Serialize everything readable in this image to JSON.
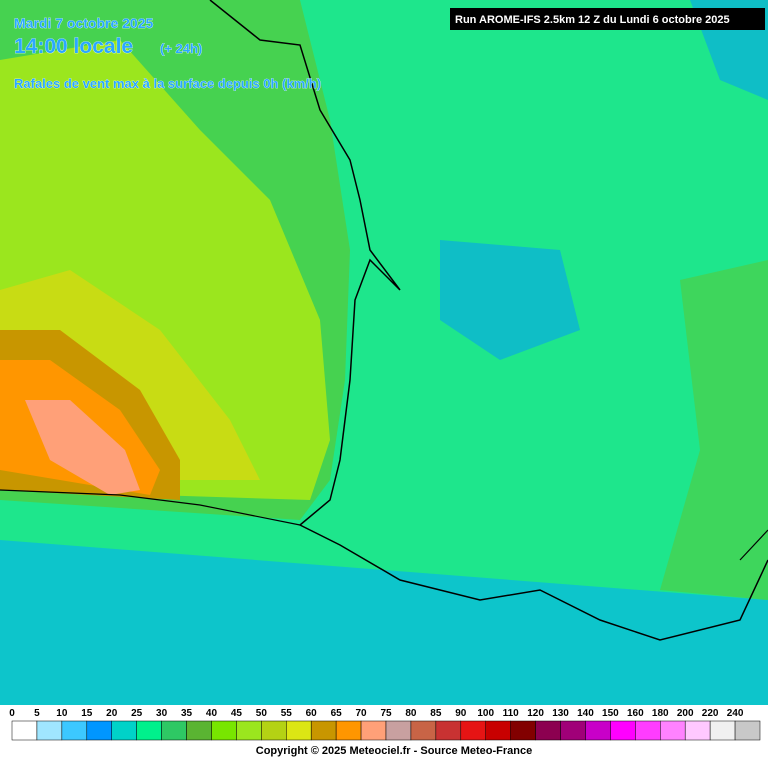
{
  "header": {
    "date": "Mardi 7 octobre 2025",
    "time": "14:00 locale",
    "offset": "(+ 24h)",
    "subtitle": "Rafales de vent max à la surface depuis 0h (km/h)",
    "run": "Run AROME-IFS 2.5km 12 Z du Lundi 6 octobre 2025"
  },
  "legend": {
    "values": [
      0,
      5,
      10,
      15,
      20,
      25,
      30,
      35,
      40,
      45,
      50,
      55,
      60,
      65,
      70,
      75,
      80,
      85,
      90,
      100,
      110,
      120,
      130,
      140,
      150,
      160,
      180,
      200,
      220,
      240
    ],
    "colors": [
      "#ffffff",
      "#a0e6ff",
      "#3cc8ff",
      "#0096ff",
      "#00d2c8",
      "#00f08c",
      "#2ec864",
      "#5ab432",
      "#78e600",
      "#9be61e",
      "#b4d214",
      "#dce614",
      "#c89600",
      "#ff9600",
      "#ffa078",
      "#c8a0a0",
      "#c86446",
      "#c83232",
      "#e61414",
      "#c80000",
      "#820000",
      "#8c0050",
      "#a00078",
      "#c800c8",
      "#ff00ff",
      "#ff3cff",
      "#ff82ff",
      "#ffc8ff",
      "#f0f0f0",
      "#c8c8c8"
    ]
  },
  "footer": {
    "copyright": "Copyright © 2025 Meteociel.fr - Source Meteo-France"
  }
}
